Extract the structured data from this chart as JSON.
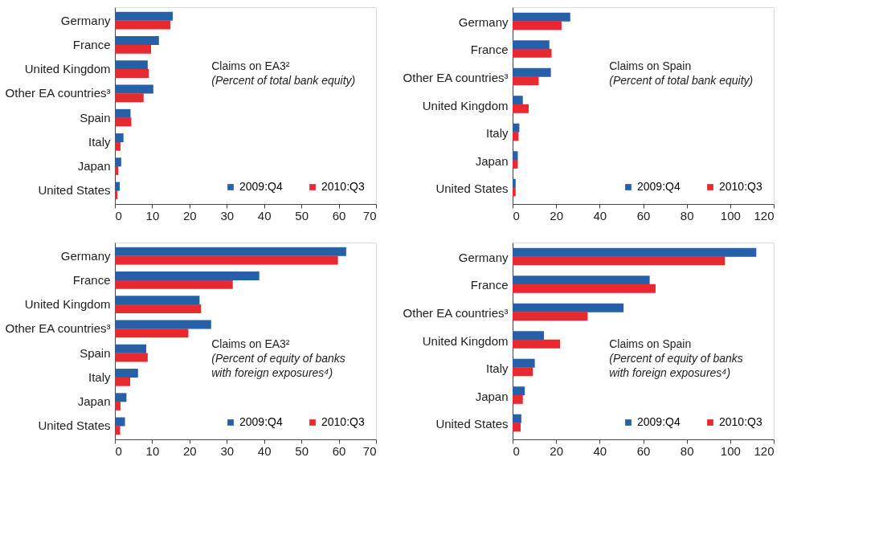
{
  "chart_data": [
    {
      "type": "bar",
      "orientation": "horizontal",
      "title": "Claims on EA3²",
      "subtitle": "(Percent of total bank equity)",
      "categories": [
        "Germany",
        "France",
        "United Kingdom",
        "Other EA countries³",
        "Spain",
        "Italy",
        "Japan",
        "United States"
      ],
      "xlim": [
        0,
        70
      ],
      "xticks": [
        0,
        10,
        20,
        30,
        40,
        50,
        60,
        70
      ],
      "grid": false,
      "legend": "bottom right",
      "series": [
        {
          "name": "2009:Q4",
          "color": "#2560a8",
          "values": [
            15.5,
            11.8,
            8.8,
            10.3,
            4.2,
            2.3,
            1.7,
            1.3
          ]
        },
        {
          "name": "2010:Q3",
          "color": "#e8292f",
          "values": [
            14.9,
            9.7,
            9.1,
            7.7,
            4.4,
            1.5,
            0.9,
            0.7
          ]
        }
      ]
    },
    {
      "type": "bar",
      "orientation": "horizontal",
      "title": "Claims on Spain",
      "subtitle": "(Percent of total bank equity)",
      "categories": [
        "Germany",
        "France",
        "Other EA countries³",
        "United Kingdom",
        "Italy",
        "Japan",
        "United States"
      ],
      "xlim": [
        0,
        120
      ],
      "xticks": [
        0,
        20,
        40,
        60,
        80,
        100,
        120
      ],
      "grid": false,
      "legend": "bottom right",
      "series": [
        {
          "name": "2009:Q4",
          "color": "#2560a8",
          "values": [
            26.5,
            16.9,
            17.6,
            4.7,
            3.1,
            2.4,
            1.4
          ]
        },
        {
          "name": "2010:Q3",
          "color": "#e8292f",
          "values": [
            22.5,
            17.9,
            12.0,
            7.4,
            2.7,
            2.4,
            1.4
          ]
        }
      ]
    },
    {
      "type": "bar",
      "orientation": "horizontal",
      "title": "Claims on EA3²",
      "subtitle": "(Percent of equity of banks with foreign exposures⁴)",
      "categories": [
        "Germany",
        "France",
        "United Kingdom",
        "Other EA countries³",
        "Spain",
        "Italy",
        "Japan",
        "United States"
      ],
      "xlim": [
        0,
        70
      ],
      "xticks": [
        0,
        10,
        20,
        30,
        40,
        50,
        60,
        70
      ],
      "grid": false,
      "legend": "bottom right",
      "series": [
        {
          "name": "2009:Q4",
          "color": "#2560a8",
          "values": [
            62.0,
            38.7,
            22.7,
            25.8,
            8.4,
            6.2,
            3.1,
            2.7
          ]
        },
        {
          "name": "2010:Q3",
          "color": "#e8292f",
          "values": [
            59.8,
            31.6,
            23.1,
            19.7,
            8.8,
            4.1,
            1.5,
            1.4
          ]
        }
      ]
    },
    {
      "type": "bar",
      "orientation": "horizontal",
      "title": "Claims on Spain",
      "subtitle": "(Percent of equity of banks with foreign exposures⁴)",
      "categories": [
        "Germany",
        "France",
        "Other EA countries³",
        "United Kingdom",
        "Italy",
        "Japan",
        "United States"
      ],
      "xlim": [
        0,
        120
      ],
      "xticks": [
        0,
        20,
        40,
        60,
        80,
        100,
        120
      ],
      "grid": false,
      "legend": "bottom right",
      "series": [
        {
          "name": "2009:Q4",
          "color": "#2560a8",
          "values": [
            112,
            63,
            51,
            14.4,
            10.2,
            5.6,
            4.0
          ]
        },
        {
          "name": "2010:Q3",
          "color": "#e8292f",
          "values": [
            97.6,
            65.7,
            34.5,
            21.8,
            9.3,
            4.7,
            3.7
          ]
        }
      ]
    }
  ]
}
